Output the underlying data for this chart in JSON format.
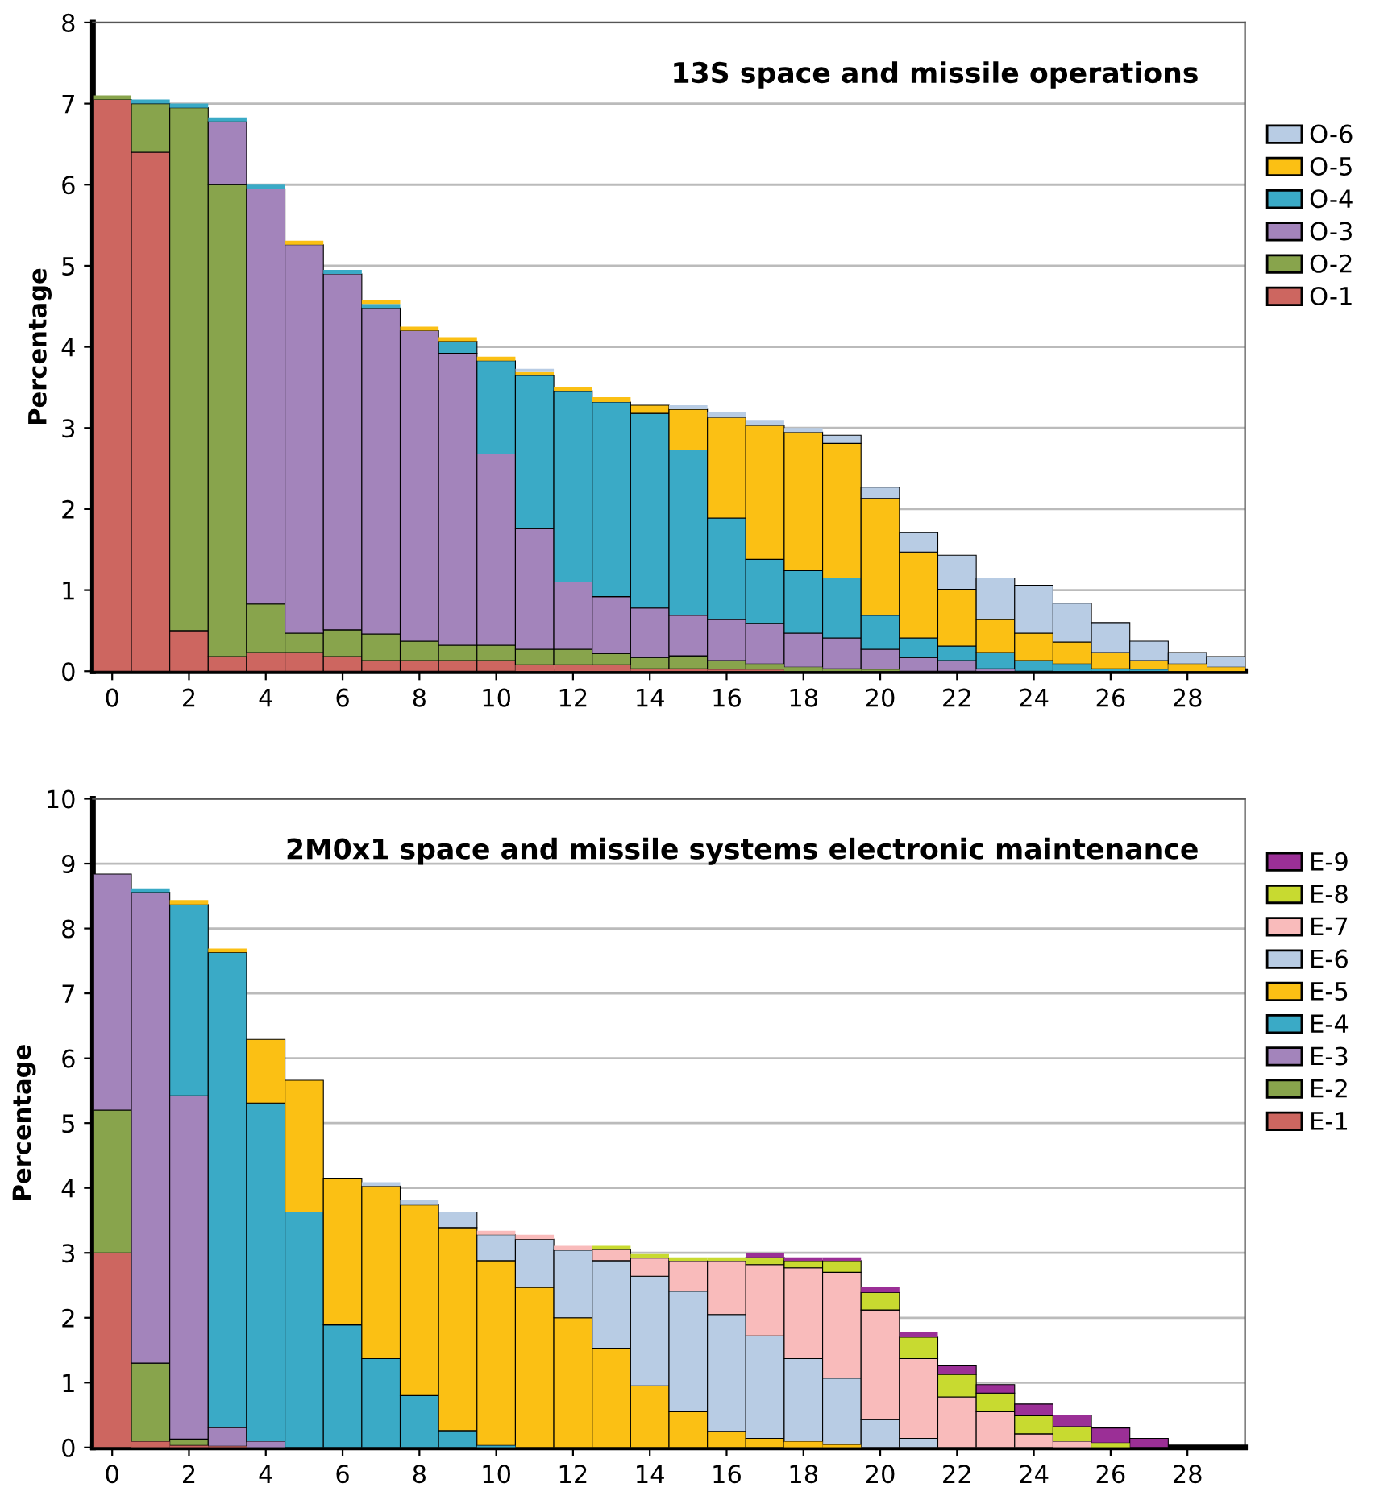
{
  "chart_data": [
    {
      "type": "bar",
      "stacked": true,
      "title": "13S space and missile operations",
      "ylabel": "Percentage",
      "x": [
        0,
        1,
        2,
        3,
        4,
        5,
        6,
        7,
        8,
        9,
        10,
        11,
        12,
        13,
        14,
        15,
        16,
        17,
        18,
        19,
        20,
        21,
        22,
        23,
        24,
        25,
        26,
        27,
        28,
        29
      ],
      "xlim": [
        -0.5,
        29.5
      ],
      "xticks": [
        0,
        2,
        4,
        6,
        8,
        10,
        12,
        14,
        16,
        18,
        20,
        22,
        24,
        26,
        28
      ],
      "ylim": [
        0,
        8
      ],
      "yticks": [
        0,
        1,
        2,
        3,
        4,
        5,
        6,
        7,
        8
      ],
      "grid": "y",
      "legend": "right",
      "series": [
        {
          "name": "O-1",
          "color": "#cd6660",
          "values": [
            7.05,
            6.4,
            0.5,
            0.18,
            0.23,
            0.23,
            0.18,
            0.13,
            0.13,
            0.13,
            0.13,
            0.08,
            0.08,
            0.08,
            0.03,
            0.03,
            0.02,
            0.02,
            0,
            0,
            0,
            0,
            0,
            0,
            0,
            0,
            0,
            0,
            0,
            0
          ]
        },
        {
          "name": "O-2",
          "color": "#88a44c",
          "values": [
            0.05,
            0.6,
            6.45,
            5.82,
            0.6,
            0.24,
            0.33,
            0.33,
            0.24,
            0.19,
            0.19,
            0.19,
            0.19,
            0.14,
            0.14,
            0.16,
            0.11,
            0.07,
            0.05,
            0.03,
            0.02,
            0,
            0,
            0,
            0,
            0,
            0,
            0,
            0,
            0
          ]
        },
        {
          "name": "O-3",
          "color": "#a384bb",
          "values": [
            0,
            0,
            0,
            0.78,
            5.12,
            4.79,
            4.39,
            4.02,
            3.83,
            3.6,
            2.36,
            1.49,
            0.83,
            0.7,
            0.61,
            0.5,
            0.51,
            0.5,
            0.42,
            0.38,
            0.25,
            0.17,
            0.13,
            0.03,
            0,
            0,
            0,
            0,
            0,
            0
          ]
        },
        {
          "name": "O-4",
          "color": "#3aaac6",
          "values": [
            0,
            0.05,
            0.05,
            0.05,
            0.05,
            0,
            0.05,
            0.05,
            0,
            0.15,
            1.15,
            1.89,
            2.36,
            2.4,
            2.4,
            2.04,
            1.25,
            0.79,
            0.77,
            0.74,
            0.42,
            0.24,
            0.18,
            0.2,
            0.13,
            0.09,
            0.03,
            0.02,
            0,
            0
          ]
        },
        {
          "name": "O-5",
          "color": "#fbc014",
          "values": [
            0,
            0,
            0,
            0,
            0,
            0.05,
            0,
            0.05,
            0.05,
            0.05,
            0.05,
            0.04,
            0.04,
            0.06,
            0.1,
            0.5,
            1.24,
            1.65,
            1.71,
            1.66,
            1.44,
            1.06,
            0.7,
            0.41,
            0.34,
            0.27,
            0.2,
            0.11,
            0.09,
            0.05
          ]
        },
        {
          "name": "O-6",
          "color": "#b8cce4",
          "values": [
            0,
            0,
            0,
            0,
            0,
            0,
            0,
            0,
            0,
            0,
            0,
            0.04,
            0,
            null,
            null,
            0.05,
            0.07,
            0.07,
            0.05,
            0.1,
            0.14,
            0.24,
            0.42,
            0.51,
            0.59,
            0.48,
            0.37,
            0.24,
            0.14,
            0.13
          ]
        }
      ]
    },
    {
      "type": "bar",
      "stacked": true,
      "title": "2M0x1 space and missile systems electronic maintenance",
      "ylabel": "Percentage",
      "x": [
        0,
        1,
        2,
        3,
        4,
        5,
        6,
        7,
        8,
        9,
        10,
        11,
        12,
        13,
        14,
        15,
        16,
        17,
        18,
        19,
        20,
        21,
        22,
        23,
        24,
        25,
        26,
        27,
        28,
        29
      ],
      "xlim": [
        -0.5,
        29.5
      ],
      "xticks": [
        0,
        2,
        4,
        6,
        8,
        10,
        12,
        14,
        16,
        18,
        20,
        22,
        24,
        26,
        28
      ],
      "ylim": [
        0,
        10
      ],
      "yticks": [
        0,
        1,
        2,
        3,
        4,
        5,
        6,
        7,
        8,
        9,
        10
      ],
      "grid": "y",
      "legend": "right",
      "series": [
        {
          "name": "E-1",
          "color": "#cd6660",
          "values": [
            3.0,
            0.09,
            0.03,
            0.02,
            0,
            0,
            0,
            0,
            0,
            0,
            0,
            0,
            0,
            0,
            0,
            0,
            0,
            0,
            0,
            0,
            0,
            0,
            0,
            0,
            0,
            0,
            0,
            0,
            0,
            0
          ]
        },
        {
          "name": "E-2",
          "color": "#88a44c",
          "values": [
            2.2,
            1.21,
            0.1,
            0,
            0,
            0,
            0,
            0,
            0,
            0,
            0,
            0,
            0,
            0,
            0,
            0,
            0,
            0,
            0,
            0,
            0,
            0,
            0,
            0,
            0,
            0,
            0,
            0,
            0,
            0
          ]
        },
        {
          "name": "E-3",
          "color": "#a384bb",
          "values": [
            3.64,
            7.26,
            5.29,
            0.29,
            0.09,
            0,
            0,
            0,
            0,
            0,
            0,
            0,
            0,
            0,
            0,
            0,
            0,
            0,
            0,
            0,
            0,
            0,
            0,
            0,
            0,
            0,
            0,
            0,
            0,
            0
          ]
        },
        {
          "name": "E-4",
          "color": "#3aaac6",
          "values": [
            0,
            0.06,
            2.95,
            7.32,
            5.22,
            3.63,
            1.89,
            1.37,
            0.8,
            0.26,
            0.03,
            0,
            0,
            0,
            0,
            0,
            0,
            0,
            0,
            0,
            0,
            0,
            0,
            0,
            0,
            0,
            0,
            0,
            0,
            0
          ]
        },
        {
          "name": "E-5",
          "color": "#fbc014",
          "values": [
            0,
            0,
            0.07,
            0.06,
            0.98,
            2.03,
            2.26,
            2.66,
            2.94,
            3.13,
            2.85,
            2.47,
            2.0,
            1.53,
            0.95,
            0.55,
            0.25,
            0.14,
            0.09,
            0.04,
            0,
            0,
            0,
            0,
            0,
            0,
            0,
            0,
            0,
            0
          ]
        },
        {
          "name": "E-6",
          "color": "#b8cce4",
          "values": [
            0,
            0,
            0,
            0,
            0,
            0,
            0,
            0.06,
            0.07,
            0.24,
            0.4,
            0.74,
            1.04,
            1.35,
            1.69,
            1.86,
            1.8,
            1.58,
            1.28,
            1.03,
            0.43,
            0.14,
            0,
            0,
            0,
            0,
            0,
            0,
            0,
            0
          ]
        },
        {
          "name": "E-7",
          "color": "#f9bbbb",
          "values": [
            0,
            0,
            0,
            0,
            0,
            0,
            0,
            0,
            0,
            0,
            0.06,
            0.07,
            0.07,
            0.17,
            0.28,
            0.47,
            0.83,
            1.1,
            1.4,
            1.63,
            1.69,
            1.23,
            0.78,
            0.55,
            0.21,
            0.09,
            null,
            0,
            0,
            0
          ]
        },
        {
          "name": "E-8",
          "color": "#c8da30",
          "values": [
            0,
            0,
            0,
            0,
            0,
            0,
            0,
            0,
            0,
            0,
            0,
            0,
            0,
            0.06,
            0.06,
            0.05,
            0.05,
            0.11,
            0.11,
            0.18,
            0.27,
            0.33,
            0.35,
            0.29,
            0.28,
            0.23,
            0.07,
            0,
            0,
            0
          ]
        },
        {
          "name": "E-9",
          "color": "#9b2f96",
          "values": [
            0,
            0,
            0,
            0,
            0,
            0,
            0,
            0,
            0,
            0,
            0,
            0,
            0,
            0,
            0,
            0,
            0,
            0.07,
            0.05,
            0.05,
            0.08,
            0.08,
            0.13,
            0.13,
            0.18,
            0.18,
            0.23,
            0.14,
            0,
            0
          ]
        }
      ]
    }
  ]
}
